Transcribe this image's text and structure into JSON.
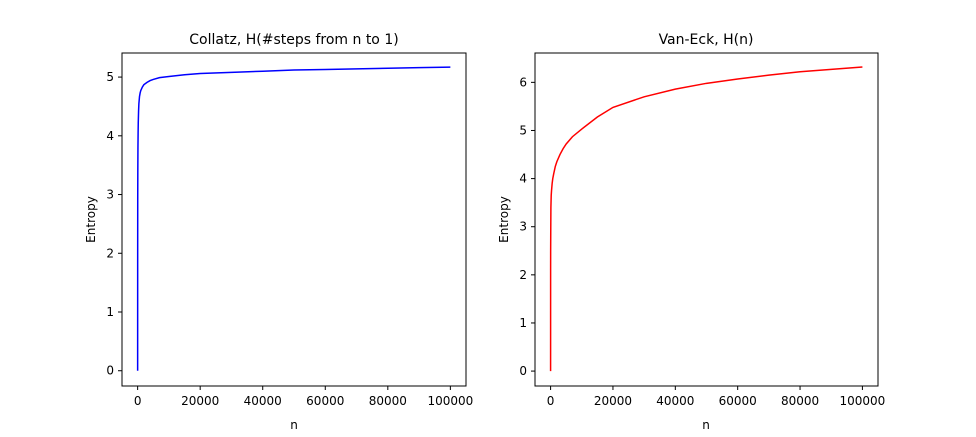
{
  "chart_data": [
    {
      "type": "line",
      "title": "Collatz, H(#steps from n to 1)",
      "xlabel": "n",
      "ylabel": "Entropy",
      "xlim": [
        -5000,
        105000
      ],
      "ylim": [
        -0.26,
        5.41
      ],
      "x_ticks": [
        0,
        20000,
        40000,
        60000,
        80000,
        100000
      ],
      "y_ticks": [
        0,
        1,
        2,
        3,
        4,
        5
      ],
      "grid": false,
      "color": "#0000ff",
      "x": [
        1,
        10,
        30,
        60,
        100,
        150,
        200,
        300,
        400,
        600,
        800,
        1000,
        1500,
        2000,
        3000,
        4000,
        5000,
        7000,
        10000,
        15000,
        20000,
        30000,
        40000,
        50000,
        60000,
        70000,
        80000,
        90000,
        100000
      ],
      "y": [
        0,
        1.8,
        2.9,
        3.4,
        3.8,
        4.05,
        4.22,
        4.42,
        4.55,
        4.67,
        4.73,
        4.77,
        4.83,
        4.87,
        4.91,
        4.94,
        4.96,
        4.99,
        5.01,
        5.04,
        5.06,
        5.08,
        5.1,
        5.12,
        5.13,
        5.14,
        5.15,
        5.16,
        5.17
      ]
    },
    {
      "type": "line",
      "title": "Van-Eck, H(n)",
      "xlabel": "n",
      "ylabel": "Entropy",
      "xlim": [
        -5000,
        105000
      ],
      "ylim": [
        -0.31,
        6.61
      ],
      "x_ticks": [
        0,
        20000,
        40000,
        60000,
        80000,
        100000
      ],
      "y_ticks": [
        0,
        1,
        2,
        3,
        4,
        5,
        6
      ],
      "grid": false,
      "color": "#ff0000",
      "x": [
        1,
        5,
        10,
        20,
        50,
        100,
        200,
        300,
        500,
        700,
        1000,
        1500,
        2000,
        3000,
        4000,
        5000,
        7000,
        10000,
        15000,
        20000,
        30000,
        40000,
        50000,
        60000,
        70000,
        80000,
        90000,
        100000
      ],
      "y": [
        0,
        1.0,
        2.1,
        2.5,
        2.9,
        3.4,
        3.65,
        3.75,
        3.9,
        4.0,
        4.1,
        4.25,
        4.35,
        4.5,
        4.62,
        4.72,
        4.87,
        5.03,
        5.28,
        5.48,
        5.7,
        5.86,
        5.98,
        6.07,
        6.15,
        6.22,
        6.27,
        6.32
      ]
    }
  ]
}
